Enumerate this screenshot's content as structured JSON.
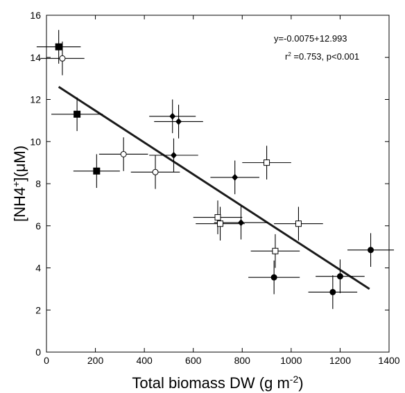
{
  "chart_data": {
    "type": "scatter",
    "xlabel": "Total biomass DW (g m",
    "xlabel_sup": "-2",
    "xlabel_end": ")",
    "ylabel": "[NH4",
    "ylabel_sup": "+",
    "ylabel_end": "](μM)",
    "xlim": [
      0,
      1400
    ],
    "ylim": [
      0,
      16
    ],
    "xticks": [
      0,
      200,
      400,
      600,
      800,
      1000,
      1200,
      1400
    ],
    "yticks": [
      0,
      2,
      4,
      6,
      8,
      10,
      12,
      14,
      16
    ],
    "grid": false,
    "annotations": {
      "equation": "y=-0.0075+12.993",
      "r2_prefix": "r",
      "r2_sup": "2",
      "r2_rest": " =0.753, p<0.001"
    },
    "regression": {
      "x": [
        50,
        1320
      ],
      "y": [
        12.6,
        3.0
      ]
    },
    "series": [
      {
        "marker": "filled-square",
        "points": [
          {
            "x": 50,
            "y": 14.5,
            "xerr": 90,
            "yerr": 0.8
          },
          {
            "x": 125,
            "y": 11.3,
            "xerr": 105,
            "yerr": 0.8
          },
          {
            "x": 205,
            "y": 8.6,
            "xerr": 95,
            "yerr": 0.8
          }
        ]
      },
      {
        "marker": "open-circle",
        "points": [
          {
            "x": 65,
            "y": 13.95,
            "xerr": 90,
            "yerr": 0.8
          },
          {
            "x": 315,
            "y": 9.4,
            "xerr": 100,
            "yerr": 0.8
          },
          {
            "x": 445,
            "y": 8.55,
            "xerr": 100,
            "yerr": 0.8
          }
        ]
      },
      {
        "marker": "filled-diamond",
        "points": [
          {
            "x": 515,
            "y": 11.2,
            "xerr": 95,
            "yerr": 0.8
          },
          {
            "x": 540,
            "y": 10.95,
            "xerr": 100,
            "yerr": 0.8
          },
          {
            "x": 520,
            "y": 9.35,
            "xerr": 100,
            "yerr": 0.8
          },
          {
            "x": 770,
            "y": 8.3,
            "xerr": 100,
            "yerr": 0.8
          },
          {
            "x": 795,
            "y": 6.15,
            "xerr": 110,
            "yerr": 0.8
          }
        ]
      },
      {
        "marker": "open-square",
        "points": [
          {
            "x": 900,
            "y": 9.0,
            "xerr": 100,
            "yerr": 0.8
          },
          {
            "x": 700,
            "y": 6.4,
            "xerr": 100,
            "yerr": 0.8
          },
          {
            "x": 710,
            "y": 6.1,
            "xerr": 100,
            "yerr": 0.8
          },
          {
            "x": 1030,
            "y": 6.1,
            "xerr": 100,
            "yerr": 0.8
          },
          {
            "x": 935,
            "y": 4.8,
            "xerr": 100,
            "yerr": 0.8
          }
        ]
      },
      {
        "marker": "filled-circle",
        "points": [
          {
            "x": 1325,
            "y": 4.85,
            "xerr": 95,
            "yerr": 0.8
          },
          {
            "x": 1200,
            "y": 3.6,
            "xerr": 100,
            "yerr": 0.8
          },
          {
            "x": 930,
            "y": 3.55,
            "xerr": 105,
            "yerr": 0.8
          },
          {
            "x": 1170,
            "y": 2.85,
            "xerr": 100,
            "yerr": 0.8
          }
        ]
      }
    ]
  }
}
